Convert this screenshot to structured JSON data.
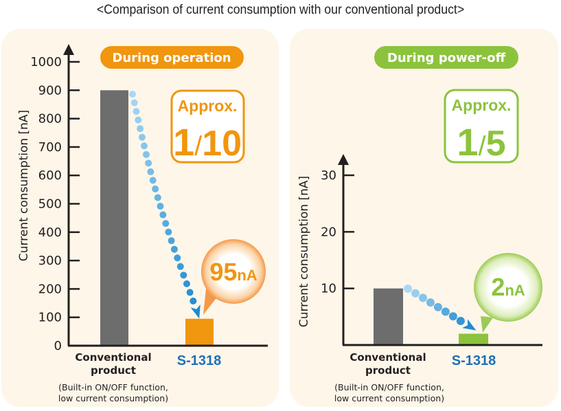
{
  "title": "<Comparison of current consumption with our conventional product>",
  "colors": {
    "conventional_bar": "#6d6d6d",
    "operation_accent": "#f0960f",
    "poweroff_accent": "#8cc33c",
    "product_label": "#1f6fb8",
    "arrow_light": "#a9d7f5",
    "arrow_dark": "#1d8bd1",
    "panel_bg": "#fdf6e9"
  },
  "chart_data": [
    {
      "type": "bar",
      "title": "During operation",
      "xlabel": "",
      "ylabel": "Current consumption [nA]",
      "ylim": [
        0,
        1000
      ],
      "yticks": [
        0,
        100,
        200,
        300,
        400,
        500,
        600,
        700,
        800,
        900,
        1000
      ],
      "categories": [
        "Conventional product",
        "S-1318"
      ],
      "category_sublabel": [
        "(Built-in ON/OFF function,",
        "low current consumption)"
      ],
      "values": [
        900,
        95
      ],
      "callout_value": "95",
      "callout_unit": "nA",
      "ratio_prefix": "Approx.",
      "ratio_numerator": "1",
      "ratio_denominator": "10",
      "grid": false
    },
    {
      "type": "bar",
      "title": "During power-off",
      "xlabel": "",
      "ylabel": "Current consumption [nA]",
      "ylim": [
        0,
        30
      ],
      "yticks": [
        10,
        20,
        30
      ],
      "categories": [
        "Conventional product",
        "S-1318"
      ],
      "category_sublabel": [
        "(Built-in ON/OFF function,",
        "low current consumption)"
      ],
      "values": [
        10,
        2
      ],
      "callout_value": "2",
      "callout_unit": "nA",
      "ratio_prefix": "Approx.",
      "ratio_numerator": "1",
      "ratio_denominator": "5",
      "grid": false
    }
  ]
}
